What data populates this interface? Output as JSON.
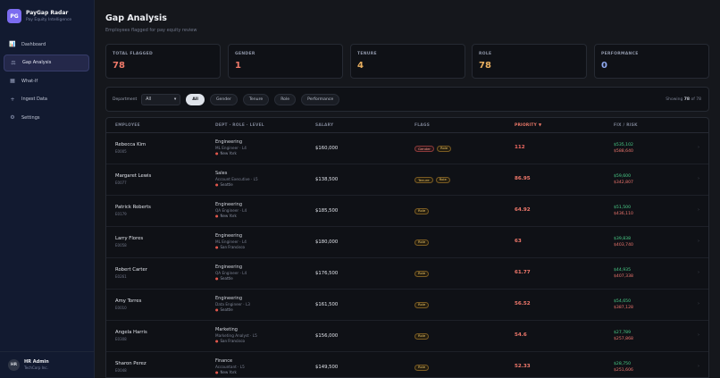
{
  "sidebar": {
    "logo": "PG",
    "title": "PayGap Radar",
    "subtitle": "Pay Equity Intelligence",
    "items": [
      {
        "label": "Dashboard",
        "icon": "📊",
        "icon_name": "bar-chart-icon",
        "active": false
      },
      {
        "label": "Gap Analysis",
        "icon": "⚖",
        "icon_name": "scales-icon",
        "active": true
      },
      {
        "label": "What-If",
        "icon": "▦",
        "icon_name": "grid-icon",
        "active": false
      },
      {
        "label": "Ingest Data",
        "icon": "+",
        "icon_name": "plus-icon",
        "active": false
      },
      {
        "label": "Settings",
        "icon": "⚙",
        "icon_name": "gear-icon",
        "active": false
      }
    ],
    "user": {
      "initials": "HR",
      "name": "HR Admin",
      "org": "TechCorp Inc."
    }
  },
  "header": {
    "title": "Gap Analysis",
    "subtitle": "Employees flagged for pay equity review"
  },
  "stats": [
    {
      "label": "TOTAL FLAGGED",
      "value": "78",
      "color": "#f07a6a"
    },
    {
      "label": "GENDER",
      "value": "1",
      "color": "#f07a6a"
    },
    {
      "label": "TENURE",
      "value": "4",
      "color": "#eab060"
    },
    {
      "label": "ROLE",
      "value": "78",
      "color": "#eab060"
    },
    {
      "label": "PERFORMANCE",
      "value": "0",
      "color": "#8fa8ef"
    }
  ],
  "filters": {
    "department_label": "Department",
    "department_value": "All",
    "chips": [
      {
        "label": "All",
        "active": true
      },
      {
        "label": "Gender",
        "active": false
      },
      {
        "label": "Tenure",
        "active": false
      },
      {
        "label": "Role",
        "active": false
      },
      {
        "label": "Performance",
        "active": false
      }
    ],
    "showing_prefix": "Showing",
    "showing_count": "78",
    "showing_of": "of 78"
  },
  "table": {
    "headers": {
      "employee": "EMPLOYEE",
      "dept": "DEPT · ROLE · LEVEL",
      "salary": "SALARY",
      "flags": "FLAGS",
      "priority": "PRIORITY ▼",
      "fix": "FIX / RISK"
    },
    "rows": [
      {
        "name": "Rebecca Kim",
        "id": "E0005",
        "dept": "Engineering",
        "role": "ML Engineer · L4",
        "location": "New York",
        "salary": "$160,000",
        "flags": [
          "Gender",
          "Role"
        ],
        "priority": "112",
        "fix": "$535,102",
        "gap": "$588,640",
        "chevron": "›"
      },
      {
        "name": "Margaret Lewis",
        "id": "E0077",
        "dept": "Sales",
        "role": "Account Executive · L5",
        "location": "Seattle",
        "salary": "$138,500",
        "flags": [
          "Tenure",
          "Role"
        ],
        "priority": "86.95",
        "fix": "$59,600",
        "gap": "$342,807",
        "chevron": "›"
      },
      {
        "name": "Patrick Roberts",
        "id": "E0179",
        "dept": "Engineering",
        "role": "QA Engineer · L4",
        "location": "New York",
        "salary": "$185,500",
        "flags": [
          "Role"
        ],
        "priority": "64.92",
        "fix": "$51,500",
        "gap": "$436,110",
        "chevron": "›"
      },
      {
        "name": "Larry Flores",
        "id": "E0058",
        "dept": "Engineering",
        "role": "ML Engineer · L4",
        "location": "San Francisco",
        "salary": "$180,000",
        "flags": [
          "Role"
        ],
        "priority": "63",
        "fix": "$39,838",
        "gap": "$403,740",
        "chevron": "›"
      },
      {
        "name": "Robert Carter",
        "id": "E0261",
        "dept": "Engineering",
        "role": "QA Engineer · L4",
        "location": "Seattle",
        "salary": "$176,500",
        "flags": [
          "Role"
        ],
        "priority": "61.77",
        "fix": "$44,935",
        "gap": "$407,338",
        "chevron": "›"
      },
      {
        "name": "Amy Torres",
        "id": "E0010",
        "dept": "Engineering",
        "role": "Data Engineer · L3",
        "location": "Seattle",
        "salary": "$161,500",
        "flags": [
          "Role"
        ],
        "priority": "56.52",
        "fix": "$54,650",
        "gap": "$387,128",
        "chevron": "›"
      },
      {
        "name": "Angela Harris",
        "id": "E0308",
        "dept": "Marketing",
        "role": "Marketing Analyst · L5",
        "location": "San Francisco",
        "salary": "$156,000",
        "flags": [
          "Role"
        ],
        "priority": "54.6",
        "fix": "$27,789",
        "gap": "$257,868",
        "chevron": "›"
      },
      {
        "name": "Sharon Perez",
        "id": "E0048",
        "dept": "Finance",
        "role": "Accountant · L5",
        "location": "New York",
        "salary": "$149,500",
        "flags": [
          "Role"
        ],
        "priority": "52.33",
        "fix": "$28,750",
        "gap": "$251,606",
        "chevron": "›"
      }
    ]
  }
}
